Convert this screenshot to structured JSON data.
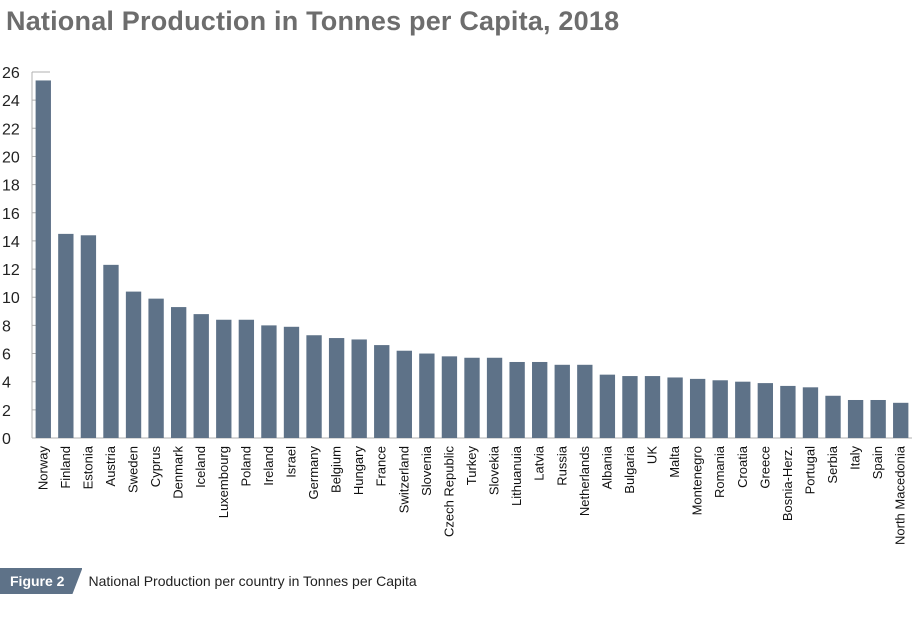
{
  "title": "National Production in Tonnes per Capita, 2018",
  "caption": {
    "badge": "Figure 2",
    "text": "National Production per country in Tonnes per Capita"
  },
  "chart_data": {
    "type": "bar",
    "title": "National Production in Tonnes per Capita, 2018",
    "xlabel": "",
    "ylabel": "",
    "ylim": [
      0,
      26
    ],
    "yticks": [
      0,
      2,
      4,
      6,
      8,
      10,
      12,
      14,
      16,
      18,
      20,
      22,
      24,
      26
    ],
    "bar_color": "#5e7288",
    "categories": [
      "Norway",
      "Finland",
      "Estonia",
      "Austria",
      "Sweden",
      "Cyprus",
      "Denmark",
      "Iceland",
      "Luxembourg",
      "Poland",
      "Ireland",
      "Israel",
      "Germany",
      "Belgium",
      "Hungary",
      "France",
      "Switzerland",
      "Slovenia",
      "Czech Republic",
      "Turkey",
      "Slovekia",
      "Lithuanuia",
      "Latvia",
      "Russia",
      "Netherlands",
      "Albania",
      "Bulgaria",
      "UK",
      "Malta",
      "Montenegro",
      "Romania",
      "Croatia",
      "Greece",
      "Bosnia-Herz.",
      "Portugal",
      "Serbia",
      "Italy",
      "Spain",
      "North Macedonia"
    ],
    "values": [
      25.4,
      14.5,
      14.4,
      12.3,
      10.4,
      9.9,
      9.3,
      8.8,
      8.4,
      8.4,
      8.0,
      7.9,
      7.3,
      7.1,
      7.0,
      6.6,
      6.2,
      6.0,
      5.8,
      5.7,
      5.7,
      5.4,
      5.4,
      5.2,
      5.2,
      4.5,
      4.4,
      4.4,
      4.3,
      4.2,
      4.1,
      4.0,
      3.9,
      3.7,
      3.6,
      3.0,
      2.7,
      2.7,
      2.5
    ]
  }
}
